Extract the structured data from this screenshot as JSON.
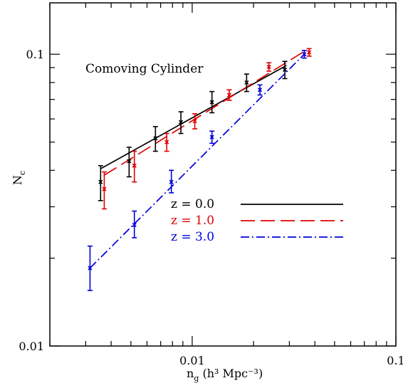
{
  "chart_data": {
    "type": "line",
    "xscale": "log",
    "yscale": "log",
    "xlim": [
      0.002,
      0.1
    ],
    "ylim": [
      0.01,
      0.15
    ],
    "xticks": [
      {
        "value": 0.01,
        "label": "0.01"
      },
      {
        "value": 0.1,
        "label": "0.1"
      }
    ],
    "yticks": [
      {
        "value": 0.01,
        "label": "0.01"
      },
      {
        "value": 0.1,
        "label": "0.1"
      }
    ],
    "xlabel_main": "n",
    "xlabel_sub": "g",
    "xlabel_units": " (h³ Mpc⁻³)",
    "ylabel_main": "N",
    "ylabel_sub": "c",
    "annotation": "Comoving Cylinder",
    "legend": [
      {
        "label": "z  =  0.0",
        "color": "#000000",
        "dash": "solid"
      },
      {
        "label": "z  =  1.0",
        "color": "#e00000",
        "dash": "long-dash"
      },
      {
        "label": "z  =  3.0",
        "color": "#0000dd",
        "dash": "dash-dot"
      }
    ],
    "series": [
      {
        "name": "z  =  0.0",
        "color": "#000000",
        "fit": {
          "x": [
            0.00355,
            0.029
          ],
          "y": [
            0.0405,
            0.0915
          ]
        },
        "points": [
          {
            "x": 0.00355,
            "y": 0.0365,
            "yerr_low": 0.0315,
            "yerr_high": 0.0415
          },
          {
            "x": 0.0049,
            "y": 0.043,
            "yerr_low": 0.038,
            "yerr_high": 0.048
          },
          {
            "x": 0.0066,
            "y": 0.0515,
            "yerr_low": 0.0465,
            "yerr_high": 0.0565
          },
          {
            "x": 0.0088,
            "y": 0.0585,
            "yerr_low": 0.0535,
            "yerr_high": 0.0635
          },
          {
            "x": 0.0125,
            "y": 0.0685,
            "yerr_low": 0.063,
            "yerr_high": 0.0745
          },
          {
            "x": 0.0185,
            "y": 0.08,
            "yerr_low": 0.0745,
            "yerr_high": 0.0855
          },
          {
            "x": 0.0285,
            "y": 0.0885,
            "yerr_low": 0.0825,
            "yerr_high": 0.0945
          }
        ]
      },
      {
        "name": "z  =  1.0",
        "color": "#e00000",
        "fit": {
          "x": [
            0.0037,
            0.0365
          ],
          "y": [
            0.0385,
            0.1035
          ]
        },
        "points": [
          {
            "x": 0.0037,
            "y": 0.0345,
            "yerr_low": 0.0295,
            "yerr_high": 0.0395
          },
          {
            "x": 0.0052,
            "y": 0.0415,
            "yerr_low": 0.0365,
            "yerr_high": 0.0465
          },
          {
            "x": 0.0075,
            "y": 0.05,
            "yerr_low": 0.0465,
            "yerr_high": 0.0535
          },
          {
            "x": 0.0103,
            "y": 0.059,
            "yerr_low": 0.0555,
            "yerr_high": 0.0625
          },
          {
            "x": 0.0152,
            "y": 0.0725,
            "yerr_low": 0.0695,
            "yerr_high": 0.0755
          },
          {
            "x": 0.0238,
            "y": 0.0905,
            "yerr_low": 0.0875,
            "yerr_high": 0.0935
          },
          {
            "x": 0.0375,
            "y": 0.1015,
            "yerr_low": 0.0985,
            "yerr_high": 0.1045
          }
        ]
      },
      {
        "name": "z  =  3.0",
        "color": "#0000dd",
        "fit": {
          "x": [
            0.00315,
            0.0355
          ],
          "y": [
            0.0185,
            0.1
          ]
        },
        "points": [
          {
            "x": 0.00315,
            "y": 0.0185,
            "yerr_low": 0.0155,
            "yerr_high": 0.022
          },
          {
            "x": 0.0052,
            "y": 0.026,
            "yerr_low": 0.0235,
            "yerr_high": 0.029
          },
          {
            "x": 0.0079,
            "y": 0.0365,
            "yerr_low": 0.0335,
            "yerr_high": 0.04
          },
          {
            "x": 0.0125,
            "y": 0.052,
            "yerr_low": 0.0495,
            "yerr_high": 0.0545
          },
          {
            "x": 0.0215,
            "y": 0.0755,
            "yerr_low": 0.0725,
            "yerr_high": 0.0785
          },
          {
            "x": 0.0355,
            "y": 0.1,
            "yerr_low": 0.097,
            "yerr_high": 0.103
          }
        ]
      }
    ]
  }
}
